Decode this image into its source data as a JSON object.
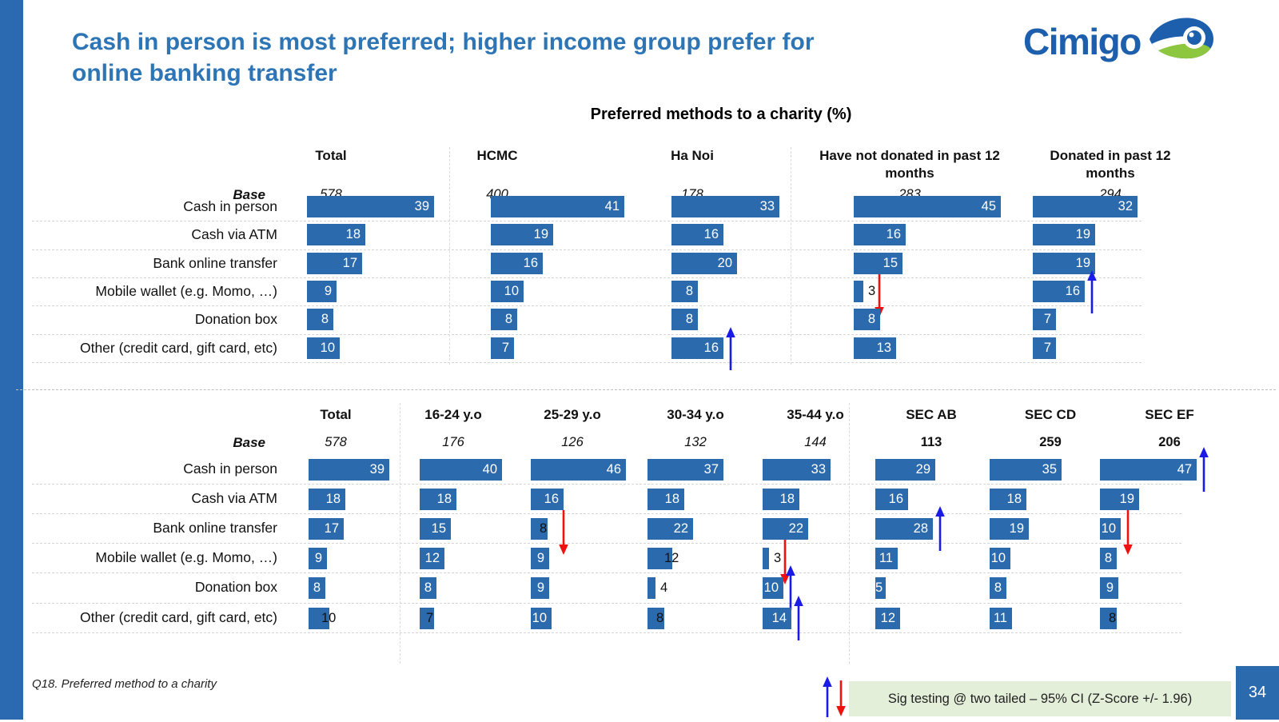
{
  "slide": {
    "title_lines": [
      "Cash in person is most preferred; higher income group prefer for",
      "online banking transfer"
    ],
    "chart_title": "Preferred methods to a charity (%)",
    "footnote": "Q18. Preferred method to a charity",
    "sig_note": "Sig testing @ two tailed – 95% CI (Z-Score +/- 1.96)",
    "page_number": "34",
    "logo_text": "Cimigo"
  },
  "colors": {
    "bar": "#2b6aad",
    "title_blue": "#2e75b6",
    "accent_strip": "#2b6ab0",
    "logo_blue": "#1d5fad",
    "logo_green": "#8dc63f",
    "arrow_up": "#1b1be8",
    "arrow_down": "#ef1010",
    "sig_note_bg": "#e4efda",
    "page_bg": "#2b6aad"
  },
  "chart_data": [
    {
      "id": "by-region-and-donation-status",
      "type": "bar",
      "orientation": "horizontal",
      "unit": "%",
      "title": "Preferred methods to a charity (%)",
      "base_label": "Base",
      "categories": [
        "Cash in person",
        "Cash via  ATM",
        "Bank online transfer",
        "Mobile wallet (e.g. Momo, …)",
        "Donation box",
        "Other (credit card, gift card, etc)"
      ],
      "series": [
        {
          "name": "Total",
          "base": "578",
          "base_style": "italic",
          "values": [
            39,
            18,
            17,
            9,
            8,
            10
          ],
          "sig": [
            "",
            "",
            "",
            "",
            "",
            ""
          ],
          "label_outside": [
            false,
            false,
            false,
            false,
            false,
            false
          ]
        },
        {
          "name": "HCMC",
          "base": "400",
          "base_style": "italic",
          "values": [
            41,
            19,
            16,
            10,
            8,
            7
          ],
          "sig": [
            "",
            "",
            "",
            "",
            "",
            ""
          ],
          "label_outside": [
            false,
            false,
            false,
            false,
            false,
            false
          ]
        },
        {
          "name": "Ha Noi",
          "base": "178",
          "base_style": "italic",
          "values": [
            33,
            16,
            20,
            8,
            8,
            16
          ],
          "sig": [
            "",
            "",
            "",
            "",
            "",
            "up"
          ],
          "label_outside": [
            false,
            false,
            false,
            false,
            false,
            false
          ]
        },
        {
          "name": "Have not donated in past 12 months",
          "base": "283",
          "base_style": "italic",
          "values": [
            45,
            16,
            15,
            3,
            8,
            13
          ],
          "sig": [
            "",
            "",
            "",
            "down",
            "",
            ""
          ],
          "label_outside": [
            false,
            false,
            false,
            true,
            false,
            false
          ]
        },
        {
          "name": "Donated in past 12 months",
          "base": "294",
          "base_style": "italic",
          "values": [
            32,
            19,
            19,
            16,
            7,
            7
          ],
          "sig": [
            "",
            "",
            "",
            "up",
            "",
            ""
          ],
          "label_outside": [
            false,
            false,
            false,
            false,
            false,
            false
          ]
        }
      ]
    },
    {
      "id": "by-age-and-sec",
      "type": "bar",
      "orientation": "horizontal",
      "unit": "%",
      "title": "Preferred methods to a charity (%)",
      "base_label": "Base",
      "categories": [
        "Cash in person",
        "Cash via  ATM",
        "Bank online transfer",
        "Mobile wallet (e.g. Momo, …)",
        "Donation box",
        "Other (credit card, gift card, etc)"
      ],
      "series": [
        {
          "name": "Total",
          "base": "578",
          "base_style": "italic",
          "values": [
            39,
            18,
            17,
            9,
            8,
            10
          ],
          "sig": [
            "",
            "",
            "",
            "",
            "",
            ""
          ],
          "label_outside": [
            false,
            false,
            false,
            false,
            false,
            true
          ]
        },
        {
          "name": "16-24 y.o",
          "base": "176",
          "base_style": "italic",
          "values": [
            40,
            18,
            15,
            12,
            8,
            7
          ],
          "sig": [
            "",
            "",
            "",
            "",
            "",
            ""
          ],
          "label_outside": [
            false,
            false,
            false,
            false,
            false,
            true
          ]
        },
        {
          "name": "25-29 y.o",
          "base": "126",
          "base_style": "italic",
          "values": [
            46,
            16,
            8,
            9,
            9,
            10
          ],
          "sig": [
            "",
            "",
            "down",
            "",
            "",
            ""
          ],
          "label_outside": [
            false,
            false,
            true,
            false,
            false,
            false
          ]
        },
        {
          "name": "30-34 y.o",
          "base": "132",
          "base_style": "italic",
          "values": [
            37,
            18,
            22,
            12,
            4,
            8
          ],
          "sig": [
            "",
            "",
            "",
            "",
            "",
            ""
          ],
          "label_outside": [
            false,
            false,
            false,
            true,
            true,
            true
          ]
        },
        {
          "name": "35-44 y.o",
          "base": "144",
          "base_style": "italic",
          "values": [
            33,
            18,
            22,
            3,
            10,
            14
          ],
          "sig": [
            "",
            "",
            "",
            "down",
            "up",
            "up"
          ],
          "label_outside": [
            false,
            false,
            false,
            true,
            false,
            false
          ]
        },
        {
          "name": "SEC AB",
          "base": "113",
          "base_style": "bold",
          "values": [
            29,
            16,
            28,
            11,
            5,
            12
          ],
          "sig": [
            "",
            "",
            "up",
            "",
            "",
            ""
          ],
          "label_outside": [
            false,
            false,
            false,
            false,
            false,
            false
          ]
        },
        {
          "name": "SEC CD",
          "base": "259",
          "base_style": "bold",
          "values": [
            35,
            18,
            19,
            10,
            8,
            11
          ],
          "sig": [
            "",
            "",
            "",
            "",
            "",
            ""
          ],
          "label_outside": [
            false,
            false,
            false,
            false,
            false,
            false
          ]
        },
        {
          "name": "SEC EF",
          "base": "206",
          "base_style": "bold",
          "values": [
            47,
            19,
            10,
            8,
            9,
            8
          ],
          "sig": [
            "up",
            "",
            "down",
            "",
            "",
            ""
          ],
          "label_outside": [
            false,
            false,
            false,
            false,
            false,
            true
          ]
        }
      ]
    }
  ]
}
